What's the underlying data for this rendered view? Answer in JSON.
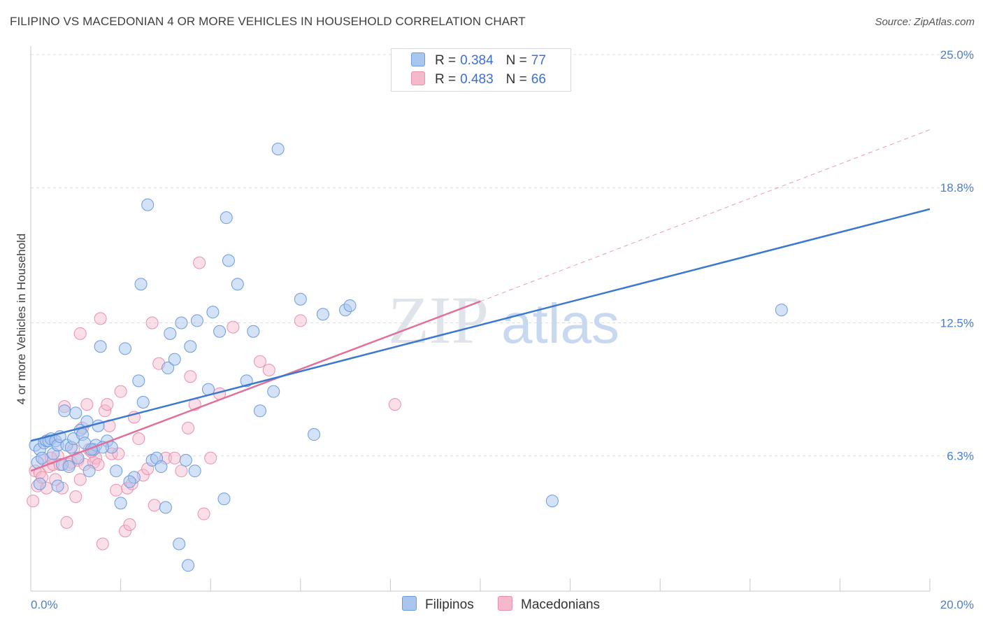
{
  "title": "FILIPINO VS MACEDONIAN 4 OR MORE VEHICLES IN HOUSEHOLD CORRELATION CHART",
  "source": "Source: ZipAtlas.com",
  "watermark": {
    "zip": "ZIP",
    "atlas": "atlas"
  },
  "legend": {
    "filipino": {
      "r_label": "R =",
      "r_value": "0.384",
      "n_label": "N =",
      "n_value": "77"
    },
    "macedonian": {
      "r_label": "R =",
      "r_value": "0.483",
      "n_label": "N =",
      "n_value": "66"
    }
  },
  "bottom_legend": {
    "filipinos": "Filipinos",
    "macedonians": "Macedonians"
  },
  "colors": {
    "blue_fill": "#a9c6ef",
    "blue_stroke": "#6b9be0",
    "blue_line": "#3b78d0",
    "pink_fill": "#f6b8cb",
    "pink_stroke": "#e990ad",
    "pink_line": "#e0709a",
    "grid": "#dcdcdc",
    "tick_text": "#4a7fd4"
  },
  "chart_data": {
    "type": "scatter",
    "title": "FILIPINO VS MACEDONIAN 4 OR MORE VEHICLES IN HOUSEHOLD CORRELATION CHART",
    "xlabel": "",
    "ylabel": "4 or more Vehicles in Household",
    "xlim": [
      0,
      20
    ],
    "ylim": [
      0,
      25
    ],
    "x_tick_labels": [
      "0.0%",
      "20.0%"
    ],
    "y_ticks": [
      6.3,
      12.5,
      18.8,
      25.0
    ],
    "y_tick_labels": [
      "6.3%",
      "12.5%",
      "18.8%",
      "25.0%"
    ],
    "grid": true,
    "series": [
      {
        "name": "Filipinos",
        "r": 0.384,
        "n": 77,
        "trend": {
          "x": [
            0,
            20
          ],
          "y": [
            7.0,
            17.8
          ]
        },
        "points": [
          [
            0.1,
            6.8
          ],
          [
            0.15,
            6.0
          ],
          [
            0.2,
            6.6
          ],
          [
            0.25,
            6.2
          ],
          [
            0.3,
            6.9
          ],
          [
            0.35,
            7.0
          ],
          [
            0.4,
            7.0
          ],
          [
            0.45,
            7.1
          ],
          [
            0.5,
            6.4
          ],
          [
            0.55,
            7.0
          ],
          [
            0.6,
            6.8
          ],
          [
            0.65,
            7.2
          ],
          [
            0.7,
            5.9
          ],
          [
            0.75,
            8.4
          ],
          [
            0.8,
            6.8
          ],
          [
            0.85,
            5.8
          ],
          [
            0.9,
            6.7
          ],
          [
            0.95,
            7.1
          ],
          [
            1.0,
            8.3
          ],
          [
            1.05,
            6.2
          ],
          [
            1.1,
            7.5
          ],
          [
            1.15,
            7.3
          ],
          [
            1.2,
            6.9
          ],
          [
            1.25,
            7.9
          ],
          [
            1.3,
            5.6
          ],
          [
            1.4,
            6.6
          ],
          [
            1.45,
            6.8
          ],
          [
            1.5,
            7.7
          ],
          [
            1.55,
            11.4
          ],
          [
            1.7,
            7.0
          ],
          [
            1.8,
            6.7
          ],
          [
            1.9,
            5.6
          ],
          [
            2.0,
            4.1
          ],
          [
            2.1,
            11.3
          ],
          [
            2.3,
            5.3
          ],
          [
            2.4,
            9.8
          ],
          [
            2.45,
            14.3
          ],
          [
            2.5,
            8.8
          ],
          [
            2.6,
            18.0
          ],
          [
            2.7,
            6.1
          ],
          [
            2.8,
            6.2
          ],
          [
            2.9,
            5.8
          ],
          [
            3.0,
            3.9
          ],
          [
            3.05,
            10.4
          ],
          [
            3.1,
            12.0
          ],
          [
            3.2,
            10.8
          ],
          [
            3.3,
            2.2
          ],
          [
            3.35,
            12.5
          ],
          [
            3.45,
            6.1
          ],
          [
            3.5,
            1.2
          ],
          [
            3.55,
            11.4
          ],
          [
            3.65,
            5.6
          ],
          [
            3.7,
            12.6
          ],
          [
            3.95,
            9.4
          ],
          [
            4.05,
            13.0
          ],
          [
            4.2,
            12.1
          ],
          [
            4.3,
            4.3
          ],
          [
            4.35,
            17.4
          ],
          [
            4.4,
            15.4
          ],
          [
            4.6,
            14.3
          ],
          [
            4.8,
            9.8
          ],
          [
            4.95,
            12.1
          ],
          [
            5.1,
            8.4
          ],
          [
            5.4,
            9.3
          ],
          [
            5.5,
            20.6
          ],
          [
            6.0,
            13.6
          ],
          [
            6.3,
            7.3
          ],
          [
            6.5,
            12.9
          ],
          [
            7.0,
            13.1
          ],
          [
            7.1,
            13.3
          ],
          [
            11.6,
            4.2
          ],
          [
            16.7,
            13.1
          ],
          [
            0.2,
            5.0
          ],
          [
            0.6,
            4.9
          ],
          [
            1.6,
            6.7
          ],
          [
            2.2,
            5.1
          ],
          [
            1.35,
            6.6
          ]
        ]
      },
      {
        "name": "Macedonians",
        "r": 0.483,
        "n": 66,
        "trend": {
          "x": [
            0,
            10
          ],
          "y": [
            5.6,
            13.5
          ]
        },
        "dashed_extension": {
          "x": [
            10,
            20
          ],
          "y": [
            13.5,
            21.5
          ]
        },
        "points": [
          [
            0.05,
            4.2
          ],
          [
            0.1,
            5.6
          ],
          [
            0.15,
            4.9
          ],
          [
            0.2,
            5.5
          ],
          [
            0.25,
            5.3
          ],
          [
            0.3,
            6.1
          ],
          [
            0.35,
            4.8
          ],
          [
            0.4,
            5.8
          ],
          [
            0.5,
            5.9
          ],
          [
            0.55,
            5.2
          ],
          [
            0.6,
            6.3
          ],
          [
            0.65,
            5.9
          ],
          [
            0.7,
            4.8
          ],
          [
            0.75,
            8.6
          ],
          [
            0.8,
            3.2
          ],
          [
            0.85,
            5.9
          ],
          [
            0.9,
            6.0
          ],
          [
            1.0,
            4.4
          ],
          [
            1.05,
            6.1
          ],
          [
            1.1,
            5.2
          ],
          [
            1.15,
            7.6
          ],
          [
            1.2,
            5.9
          ],
          [
            1.25,
            8.7
          ],
          [
            1.3,
            6.6
          ],
          [
            1.4,
            6.0
          ],
          [
            1.45,
            6.2
          ],
          [
            1.5,
            5.9
          ],
          [
            1.6,
            2.2
          ],
          [
            1.65,
            8.4
          ],
          [
            1.7,
            8.7
          ],
          [
            1.75,
            7.7
          ],
          [
            1.8,
            6.4
          ],
          [
            1.9,
            4.7
          ],
          [
            1.95,
            6.4
          ],
          [
            2.0,
            9.3
          ],
          [
            2.1,
            2.8
          ],
          [
            2.15,
            4.8
          ],
          [
            2.2,
            3.1
          ],
          [
            2.25,
            5.0
          ],
          [
            2.4,
            7.1
          ],
          [
            2.5,
            5.4
          ],
          [
            2.6,
            5.7
          ],
          [
            2.7,
            12.5
          ],
          [
            2.75,
            4.0
          ],
          [
            2.85,
            10.6
          ],
          [
            3.0,
            6.2
          ],
          [
            3.2,
            6.2
          ],
          [
            3.35,
            5.6
          ],
          [
            3.5,
            7.6
          ],
          [
            3.55,
            10.0
          ],
          [
            3.65,
            8.7
          ],
          [
            3.75,
            15.3
          ],
          [
            3.85,
            3.6
          ],
          [
            4.0,
            6.2
          ],
          [
            4.2,
            9.2
          ],
          [
            4.5,
            12.3
          ],
          [
            5.1,
            10.7
          ],
          [
            5.3,
            10.3
          ],
          [
            6.0,
            12.6
          ],
          [
            8.1,
            8.7
          ],
          [
            1.1,
            12.0
          ],
          [
            1.55,
            12.7
          ],
          [
            0.45,
            6.2
          ],
          [
            1.35,
            6.5
          ],
          [
            0.95,
            6.6
          ],
          [
            2.3,
            8.1
          ]
        ]
      }
    ]
  }
}
